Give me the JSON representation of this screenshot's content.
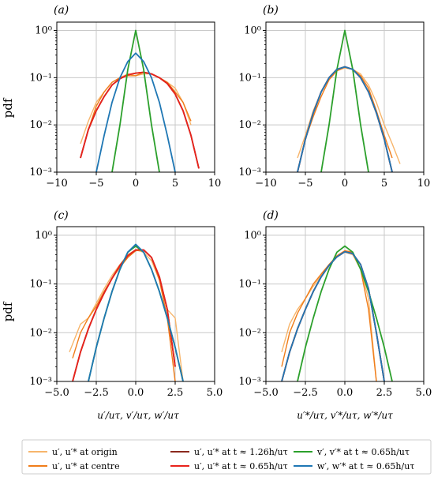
{
  "figure": {
    "ylabel": "pdf",
    "panel_labels": [
      "(a)",
      "(b)",
      "(c)",
      "(d)"
    ],
    "xlabel_left": "u′/uτ,  v′/uτ,  w′/uτ",
    "xlabel_right": "u′*/uτ,  v′*/uτ,  w′*/uτ"
  },
  "legend": [
    {
      "label": "u′, u′* at origin",
      "color": "#f7b56b"
    },
    {
      "label": "u′, u′* at centre",
      "color": "#f07d1a"
    },
    {
      "label": "u′, u′* at t ≈ 1.26h/uτ",
      "color": "#8b2a1e"
    },
    {
      "label": "u′, u′* at t ≈ 0.65h/uτ",
      "color": "#e8231c"
    },
    {
      "label": "v′, v′* at t ≈ 0.65h/uτ",
      "color": "#2ca02c"
    },
    {
      "label": "w′, w′* at t ≈ 0.65h/uτ",
      "color": "#1f77b4"
    }
  ],
  "chart_data": [
    {
      "panel": "(a)",
      "type": "line",
      "yscale": "log",
      "xlim": [
        -10,
        10
      ],
      "ylim": [
        0.001,
        1.5
      ],
      "grid": true,
      "xticks": [
        "−10",
        "−5",
        "0",
        "5",
        "10"
      ],
      "xtick_values": [
        -10,
        -5,
        0,
        5,
        10
      ],
      "yticks": [
        "10⁻³",
        "10⁻²",
        "10⁻¹",
        "10⁰"
      ],
      "series": [
        {
          "name": "u′, u′* at origin",
          "x": [
            -7,
            -6,
            -5,
            -4,
            -3,
            -2,
            -1,
            0,
            1,
            2,
            3,
            4,
            5,
            6,
            7
          ],
          "y": [
            0.004,
            0.012,
            0.03,
            0.05,
            0.08,
            0.1,
            0.12,
            0.11,
            0.12,
            0.12,
            0.1,
            0.08,
            0.06,
            0.03,
            0.01
          ]
        },
        {
          "name": "u′, u′* at centre",
          "x": [
            -6,
            -5,
            -4,
            -3,
            -2,
            -1,
            0,
            1,
            2,
            3,
            4,
            5,
            6,
            7
          ],
          "y": [
            0.008,
            0.025,
            0.05,
            0.08,
            0.1,
            0.11,
            0.11,
            0.13,
            0.12,
            0.1,
            0.08,
            0.05,
            0.03,
            0.012
          ]
        },
        {
          "name": "u′, u′* at t ≈ 1.26h/uτ",
          "x": [
            -7,
            -6,
            -5,
            -4,
            -3,
            -2,
            -1,
            0,
            1,
            2,
            3,
            4,
            5,
            6,
            7,
            8
          ],
          "y": [
            0.002,
            0.008,
            0.02,
            0.04,
            0.07,
            0.095,
            0.115,
            0.125,
            0.13,
            0.12,
            0.1,
            0.075,
            0.045,
            0.02,
            0.006,
            0.0012
          ]
        },
        {
          "name": "u′, u′* at t ≈ 0.65h/uτ",
          "x": [
            -7,
            -6,
            -5,
            -4,
            -3,
            -2,
            -1,
            0,
            1,
            2,
            3,
            4,
            5,
            6,
            7,
            8
          ],
          "y": [
            0.002,
            0.008,
            0.02,
            0.04,
            0.07,
            0.095,
            0.115,
            0.125,
            0.13,
            0.12,
            0.1,
            0.075,
            0.045,
            0.02,
            0.006,
            0.0012
          ]
        },
        {
          "name": "v′, v′* at t ≈ 0.65h/uτ",
          "x": [
            -3,
            -2,
            -1,
            0,
            1,
            2,
            3
          ],
          "y": [
            0.001,
            0.01,
            0.15,
            1.0,
            0.15,
            0.01,
            0.001
          ]
        },
        {
          "name": "w′, w′* at t ≈ 0.65h/uτ",
          "x": [
            -5,
            -4,
            -3,
            -2,
            -1,
            0,
            1,
            2,
            3,
            4,
            5
          ],
          "y": [
            0.001,
            0.006,
            0.03,
            0.1,
            0.22,
            0.33,
            0.22,
            0.1,
            0.03,
            0.006,
            0.001
          ]
        }
      ]
    },
    {
      "panel": "(b)",
      "type": "line",
      "yscale": "log",
      "xlim": [
        -10,
        10
      ],
      "ylim": [
        0.001,
        1.5
      ],
      "grid": true,
      "xticks": [
        "−10",
        "−5",
        "0",
        "5",
        "10"
      ],
      "xtick_values": [
        -10,
        -5,
        0,
        5,
        10
      ],
      "yticks": [
        "10⁻³",
        "10⁻²",
        "10⁻¹",
        "10⁰"
      ],
      "series": [
        {
          "name": "u′, u′* at origin",
          "x": [
            -6,
            -5,
            -4,
            -3,
            -2,
            -1,
            0,
            1,
            2,
            3,
            4,
            5,
            6,
            7
          ],
          "y": [
            0.002,
            0.006,
            0.02,
            0.05,
            0.1,
            0.14,
            0.16,
            0.15,
            0.12,
            0.07,
            0.03,
            0.01,
            0.004,
            0.0015
          ]
        },
        {
          "name": "u′, u′* at centre",
          "x": [
            -5,
            -4,
            -3,
            -2,
            -1,
            0,
            1,
            2,
            3,
            4,
            5,
            6
          ],
          "y": [
            0.005,
            0.015,
            0.04,
            0.09,
            0.14,
            0.17,
            0.15,
            0.11,
            0.06,
            0.02,
            0.006,
            0.002
          ]
        },
        {
          "name": "u′, u′* at t ≈ 1.26h/uτ",
          "x": [
            -6,
            -5,
            -4,
            -3,
            -2,
            -1,
            0,
            1,
            2,
            3,
            4,
            5,
            6
          ],
          "y": [
            0.001,
            0.005,
            0.018,
            0.05,
            0.1,
            0.15,
            0.17,
            0.15,
            0.1,
            0.05,
            0.018,
            0.005,
            0.001
          ]
        },
        {
          "name": "u′, u′* at t ≈ 0.65h/uτ",
          "x": [
            -6,
            -5,
            -4,
            -3,
            -2,
            -1,
            0,
            1,
            2,
            3,
            4,
            5,
            6
          ],
          "y": [
            0.001,
            0.005,
            0.018,
            0.05,
            0.1,
            0.15,
            0.17,
            0.15,
            0.1,
            0.05,
            0.018,
            0.005,
            0.001
          ]
        },
        {
          "name": "v′, v′* at t ≈ 0.65h/uτ",
          "x": [
            -3,
            -2,
            -1,
            0,
            1,
            2,
            3
          ],
          "y": [
            0.001,
            0.01,
            0.15,
            1.0,
            0.15,
            0.01,
            0.001
          ]
        },
        {
          "name": "w′, w′* at t ≈ 0.65h/uτ",
          "x": [
            -6,
            -5,
            -4,
            -3,
            -2,
            -1,
            0,
            1,
            2,
            3,
            4,
            5,
            6
          ],
          "y": [
            0.001,
            0.005,
            0.018,
            0.05,
            0.1,
            0.15,
            0.17,
            0.15,
            0.1,
            0.05,
            0.018,
            0.005,
            0.001
          ]
        }
      ]
    },
    {
      "panel": "(c)",
      "type": "line",
      "yscale": "log",
      "xlim": [
        -5,
        5
      ],
      "ylim": [
        0.001,
        1.5
      ],
      "grid": true,
      "xticks": [
        "−5.0",
        "−2.5",
        "0.0",
        "2.5",
        "5.0"
      ],
      "xtick_values": [
        -5,
        -2.5,
        0,
        2.5,
        5
      ],
      "yticks": [
        "10⁻³",
        "10⁻²",
        "10⁻¹",
        "10⁰"
      ],
      "series": [
        {
          "name": "u′, u′* at origin",
          "x": [
            -4.2,
            -3.5,
            -3,
            -2.5,
            -2,
            -1.5,
            -1,
            -0.5,
            0,
            0.5,
            1,
            1.5,
            2,
            2.5,
            3
          ],
          "y": [
            0.004,
            0.015,
            0.02,
            0.04,
            0.08,
            0.15,
            0.25,
            0.4,
            0.5,
            0.45,
            0.3,
            0.12,
            0.03,
            0.02,
            0.001
          ]
        },
        {
          "name": "u′, u′* at centre",
          "x": [
            -4,
            -3.5,
            -3,
            -2.5,
            -2,
            -1.5,
            -1,
            -0.5,
            0,
            0.5,
            1,
            1.5,
            2,
            2.5
          ],
          "y": [
            0.003,
            0.01,
            0.02,
            0.035,
            0.07,
            0.13,
            0.22,
            0.35,
            0.48,
            0.5,
            0.35,
            0.12,
            0.02,
            0.001
          ]
        },
        {
          "name": "u′, u′* at t ≈ 1.26h/uτ",
          "x": [
            -4,
            -3.5,
            -3,
            -2.5,
            -2,
            -1.5,
            -1,
            -0.5,
            0,
            0.5,
            1,
            1.5,
            2,
            2.5
          ],
          "y": [
            0.001,
            0.004,
            0.012,
            0.03,
            0.065,
            0.13,
            0.24,
            0.38,
            0.5,
            0.5,
            0.35,
            0.14,
            0.03,
            0.002
          ]
        },
        {
          "name": "u′, u′* at t ≈ 0.65h/uτ",
          "x": [
            -4,
            -3.5,
            -3,
            -2.5,
            -2,
            -1.5,
            -1,
            -0.5,
            0,
            0.5,
            1,
            1.5,
            2,
            2.5
          ],
          "y": [
            0.001,
            0.004,
            0.012,
            0.03,
            0.065,
            0.13,
            0.24,
            0.38,
            0.5,
            0.5,
            0.35,
            0.14,
            0.03,
            0.002
          ]
        },
        {
          "name": "v′, v′* at t ≈ 0.65h/uτ",
          "x": [
            -3,
            -2.5,
            -2,
            -1.5,
            -1,
            -0.5,
            0,
            0.5,
            1,
            1.5,
            2,
            2.5,
            3
          ],
          "y": [
            0.001,
            0.005,
            0.02,
            0.07,
            0.2,
            0.45,
            0.6,
            0.45,
            0.2,
            0.07,
            0.02,
            0.005,
            0.001
          ]
        },
        {
          "name": "w′, w′* at t ≈ 0.65h/uτ",
          "x": [
            -3,
            -2.5,
            -2,
            -1.5,
            -1,
            -0.5,
            0,
            0.5,
            1,
            1.5,
            2,
            2.5,
            3
          ],
          "y": [
            0.001,
            0.005,
            0.02,
            0.07,
            0.2,
            0.45,
            0.65,
            0.45,
            0.2,
            0.07,
            0.02,
            0.005,
            0.001
          ]
        }
      ]
    },
    {
      "panel": "(d)",
      "type": "line",
      "yscale": "log",
      "xlim": [
        -5,
        5
      ],
      "ylim": [
        0.001,
        1.5
      ],
      "grid": true,
      "xticks": [
        "−5.0",
        "−2.5",
        "0.0",
        "2.5",
        "5.0"
      ],
      "xtick_values": [
        -5,
        -2.5,
        0,
        2.5,
        5
      ],
      "yticks": [
        "10⁻³",
        "10⁻²",
        "10⁻¹",
        "10⁰"
      ],
      "series": [
        {
          "name": "u′, u′* at origin",
          "x": [
            -4,
            -3.5,
            -3,
            -2.5,
            -2,
            -1.5,
            -1,
            -0.5,
            0,
            0.5,
            1,
            1.5,
            2
          ],
          "y": [
            0.004,
            0.015,
            0.03,
            0.05,
            0.09,
            0.15,
            0.25,
            0.37,
            0.45,
            0.4,
            0.2,
            0.05,
            0.001
          ]
        },
        {
          "name": "u′, u′* at centre",
          "x": [
            -4,
            -3.5,
            -3,
            -2.5,
            -2,
            -1.5,
            -1,
            -0.5,
            0,
            0.5,
            1,
            1.5,
            2
          ],
          "y": [
            0.002,
            0.01,
            0.025,
            0.05,
            0.1,
            0.16,
            0.25,
            0.38,
            0.48,
            0.45,
            0.2,
            0.03,
            0.001
          ]
        },
        {
          "name": "u′, u′* at t ≈ 1.26h/uτ",
          "x": [
            -4,
            -3.5,
            -3,
            -2.5,
            -2,
            -1.5,
            -1,
            -0.5,
            0,
            0.5,
            1,
            1.5,
            2,
            2.5
          ],
          "y": [
            0.001,
            0.004,
            0.012,
            0.03,
            0.07,
            0.14,
            0.24,
            0.36,
            0.46,
            0.42,
            0.25,
            0.08,
            0.01,
            0.001
          ]
        },
        {
          "name": "u′, u′* at t ≈ 0.65h/uτ",
          "x": [
            -4,
            -3.5,
            -3,
            -2.5,
            -2,
            -1.5,
            -1,
            -0.5,
            0,
            0.5,
            1,
            1.5,
            2,
            2.5
          ],
          "y": [
            0.001,
            0.004,
            0.012,
            0.03,
            0.07,
            0.14,
            0.24,
            0.36,
            0.46,
            0.42,
            0.25,
            0.08,
            0.01,
            0.001
          ]
        },
        {
          "name": "v′, v′* at t ≈ 0.65h/uτ",
          "x": [
            -3,
            -2.5,
            -2,
            -1.5,
            -1,
            -0.5,
            0,
            0.5,
            1,
            1.5,
            2,
            2.5,
            3
          ],
          "y": [
            0.001,
            0.005,
            0.02,
            0.07,
            0.2,
            0.45,
            0.6,
            0.45,
            0.2,
            0.07,
            0.02,
            0.005,
            0.001
          ]
        },
        {
          "name": "w′, w′* at t ≈ 0.65h/uτ",
          "x": [
            -4,
            -3.5,
            -3,
            -2.5,
            -2,
            -1.5,
            -1,
            -0.5,
            0,
            0.5,
            1,
            1.5,
            2,
            2.5
          ],
          "y": [
            0.001,
            0.004,
            0.012,
            0.03,
            0.07,
            0.14,
            0.24,
            0.36,
            0.46,
            0.42,
            0.25,
            0.08,
            0.01,
            0.001
          ]
        }
      ]
    }
  ]
}
